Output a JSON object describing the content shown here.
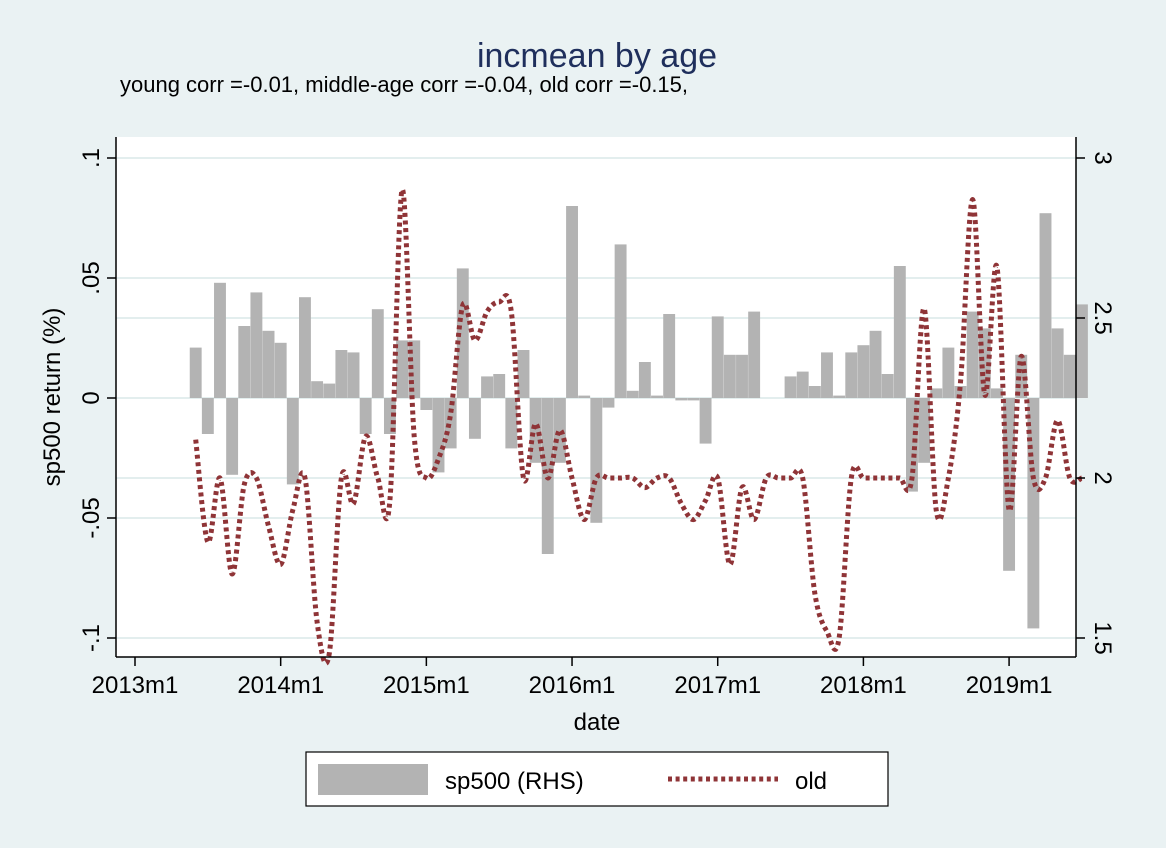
{
  "chart_data": {
    "type": "bar",
    "title": "incmean by age",
    "subtitle": "young corr =-0.01, middle-age corr =-0.04, old corr =-0.15,",
    "xlabel": "date",
    "ylabel": "sp500 return (%)",
    "x_ticks": [
      "2013m1",
      "2014m1",
      "2015m1",
      "2016m1",
      "2017m1",
      "2018m1",
      "2019m1"
    ],
    "x_range": [
      "2013m1",
      "2019m7"
    ],
    "y_left": {
      "range": [
        -0.1,
        0.1
      ],
      "ticks": [
        ".1",
        ".05",
        "0",
        "-.05",
        "-.1"
      ]
    },
    "y_right": {
      "range": [
        1.5,
        3.0
      ],
      "ticks": [
        "3",
        "2.5",
        "2",
        "1.5"
      ]
    },
    "grid": true,
    "legend_position": "bottom",
    "colors": {
      "bars": "#b3b3b3",
      "line": "#8f3437",
      "title": "#1f2f5c",
      "background": "#eaf2f3",
      "plot": "#ffffff"
    },
    "series": [
      {
        "name": "sp500 (RHS)",
        "type": "bar",
        "axis": "left",
        "start": "2013m6",
        "values": [
          0.021,
          -0.015,
          0.048,
          -0.032,
          0.03,
          0.044,
          0.028,
          0.023,
          -0.036,
          0.042,
          0.007,
          0.006,
          0.02,
          0.019,
          -0.015,
          0.037,
          -0.015,
          0.024,
          0.024,
          -0.005,
          -0.031,
          -0.021,
          0.054,
          -0.017,
          0.009,
          0.01,
          -0.021,
          0.02,
          -0.027,
          -0.065,
          -0.027,
          0.08,
          0.001,
          -0.052,
          -0.004,
          0.064,
          0.003,
          0.015,
          0.001,
          0.035,
          -0.001,
          -0.001,
          -0.019,
          0.034,
          0.018,
          0.018,
          0.036,
          0.0,
          0.0,
          0.009,
          0.011,
          0.005,
          0.019,
          0.001,
          0.019,
          0.022,
          0.028,
          0.01,
          0.055,
          -0.039,
          -0.027,
          0.004,
          0.021,
          0.005,
          0.036,
          0.029,
          0.004,
          -0.072,
          0.018,
          -0.096,
          0.077,
          0.029,
          0.018,
          0.039
        ]
      },
      {
        "name": "old",
        "type": "line",
        "axis": "right",
        "style": "dotted",
        "start": "2013m6",
        "values": [
          2.12,
          1.8,
          2.0,
          1.7,
          1.98,
          2.0,
          1.85,
          1.73,
          1.9,
          2.0,
          1.55,
          1.45,
          2.0,
          1.92,
          2.13,
          2.0,
          1.93,
          2.9,
          2.13,
          2.0,
          2.06,
          2.2,
          2.54,
          2.43,
          2.52,
          2.55,
          2.52,
          2.0,
          2.17,
          2.0,
          2.15,
          2.0,
          1.87,
          2.0,
          2.0,
          2.0,
          2.0,
          1.97,
          2.0,
          2.0,
          1.92,
          1.87,
          1.93,
          2.0,
          1.73,
          1.97,
          1.87,
          2.0,
          2.0,
          2.0,
          2.0,
          1.64,
          1.52,
          1.5,
          2.0,
          2.0,
          2.0,
          2.0,
          2.0,
          2.0,
          2.53,
          1.9,
          2.0,
          2.3,
          2.87,
          2.26,
          2.66,
          1.9,
          2.38,
          2.0,
          2.0,
          2.18,
          2.0,
          2.0
        ]
      }
    ]
  }
}
